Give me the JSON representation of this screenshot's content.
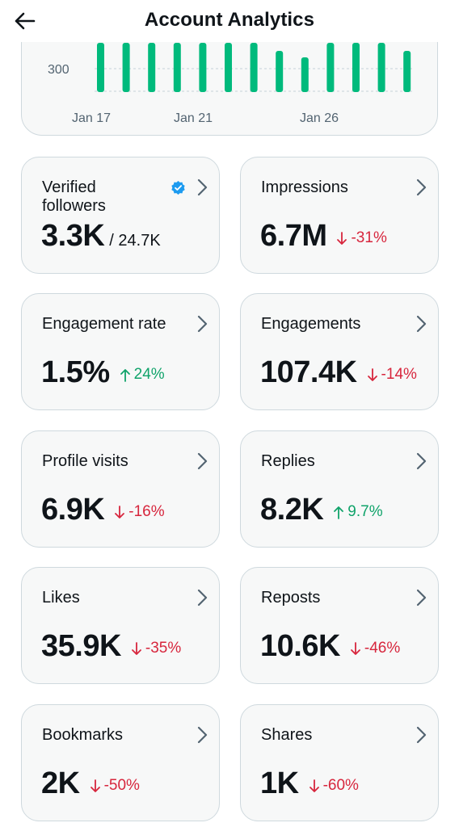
{
  "header": {
    "title": "Account Analytics",
    "back_icon": "back-arrow-icon"
  },
  "chart_data": {
    "type": "bar",
    "x_tick_labels": [
      "Jan 17",
      "Jan 21",
      "Jan 26"
    ],
    "visible_y_tick": "300",
    "bar_color": "#00ba7c",
    "bar_count": 13
  },
  "colors": {
    "down": "#d7263d",
    "up": "#10a36a",
    "verified": "#1d9bf0",
    "card_bg": "#f7f8f8",
    "card_border": "#cfd9de"
  },
  "cards": [
    {
      "label": "Verified followers",
      "value": "3.3K",
      "sub": "/ 24.7K",
      "verified": true
    },
    {
      "label": "Impressions",
      "value": "6.7M",
      "delta": "-31%",
      "direction": "down"
    },
    {
      "label": "Engagement rate",
      "value": "1.5%",
      "delta": "24%",
      "direction": "up"
    },
    {
      "label": "Engagements",
      "value": "107.4K",
      "delta": "-14%",
      "direction": "down"
    },
    {
      "label": "Profile visits",
      "value": "6.9K",
      "delta": "-16%",
      "direction": "down"
    },
    {
      "label": "Replies",
      "value": "8.2K",
      "delta": "9.7%",
      "direction": "up"
    },
    {
      "label": "Likes",
      "value": "35.9K",
      "delta": "-35%",
      "direction": "down"
    },
    {
      "label": "Reposts",
      "value": "10.6K",
      "delta": "-46%",
      "direction": "down"
    },
    {
      "label": "Bookmarks",
      "value": "2K",
      "delta": "-50%",
      "direction": "down"
    },
    {
      "label": "Shares",
      "value": "1K",
      "delta": "-60%",
      "direction": "down"
    }
  ]
}
